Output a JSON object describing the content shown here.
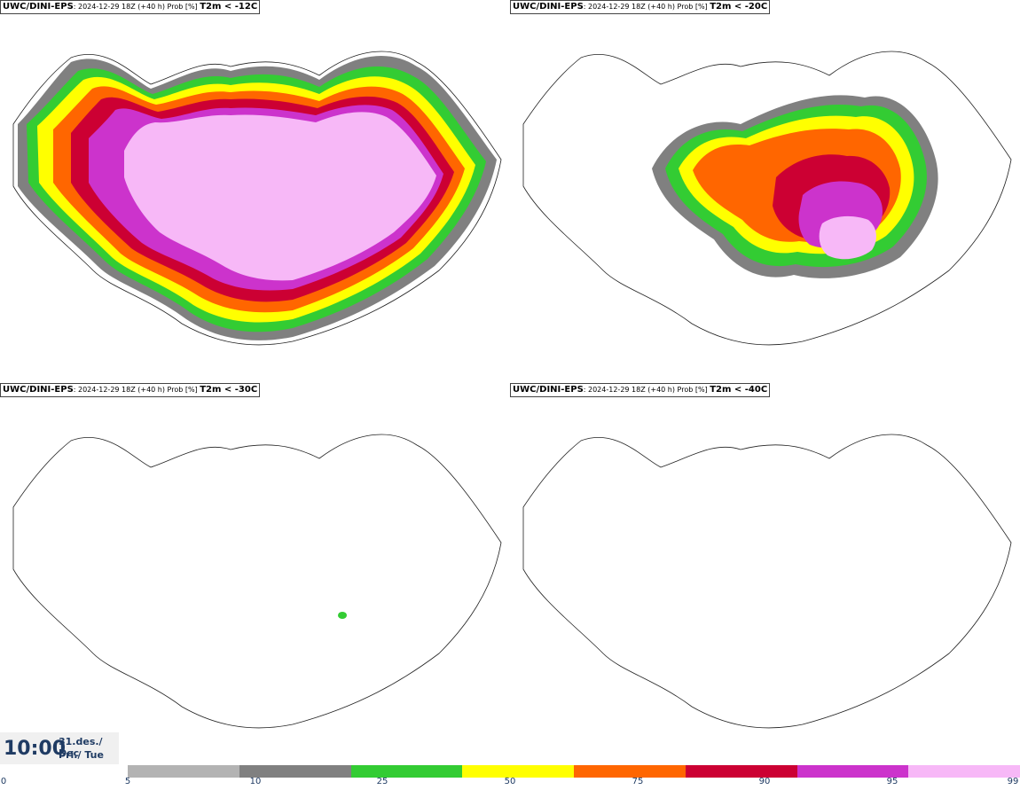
{
  "panels": [
    {
      "source": "UWC/DINI-EPS",
      "meta": ": 2024-12-29 18Z (+40 h) Prob [%] ",
      "threshold": "T2m < -12C"
    },
    {
      "source": "UWC/DINI-EPS",
      "meta": ": 2024-12-29 18Z (+40 h) Prob [%] ",
      "threshold": "T2m < -20C"
    },
    {
      "source": "UWC/DINI-EPS",
      "meta": ": 2024-12-29 18Z (+40 h) Prob [%] ",
      "threshold": "T2m < -30C"
    },
    {
      "source": "UWC/DINI-EPS",
      "meta": ": 2024-12-29 18Z (+40 h) Prob [%] ",
      "threshold": "T2m < -40C"
    }
  ],
  "valid_time": {
    "time": "10:00",
    "date_line": "31.des./ Dec",
    "day_line": "Þri./ Tue"
  },
  "legend": {
    "ticks": [
      "0",
      "5",
      "10",
      "25",
      "50",
      "75",
      "90",
      "95",
      "99"
    ],
    "colors": [
      "#b3b3b3",
      "#808080",
      "#33cc33",
      "#ffff00",
      "#ff6600",
      "#cc0033",
      "#cc33cc",
      "#f7b8f7"
    ]
  }
}
